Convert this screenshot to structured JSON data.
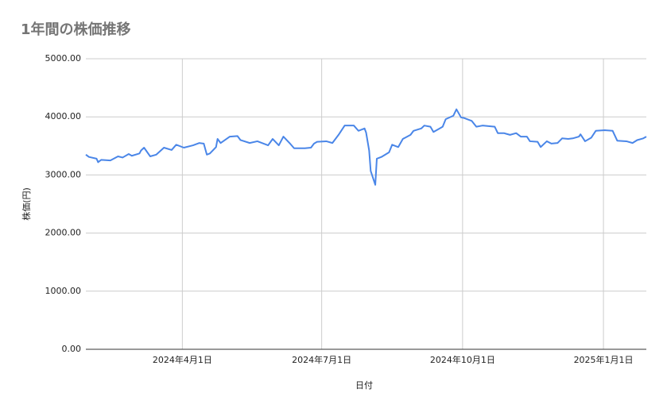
{
  "chart_data": {
    "type": "line",
    "title": "1年間の株価推移",
    "x_label": "日付",
    "y_label": "株価(円)",
    "color": "#4a86e8",
    "grid": true,
    "xlim": [
      "2024-01-29",
      "2025-01-29"
    ],
    "xticks": [
      {
        "value": "2024-04-01",
        "label": "2024年4月1日"
      },
      {
        "value": "2024-07-01",
        "label": "2024年7月1日"
      },
      {
        "value": "2024-10-01",
        "label": "2024年10月1日"
      },
      {
        "value": "2025-01-01",
        "label": "2025年1月1日"
      }
    ],
    "ylim": [
      0,
      5000
    ],
    "yticks": [
      {
        "value": 0,
        "label": "0.00"
      },
      {
        "value": 1000,
        "label": "1000.00"
      },
      {
        "value": 2000,
        "label": "2000.00"
      },
      {
        "value": 3000,
        "label": "3000.00"
      },
      {
        "value": 4000,
        "label": "4000.00"
      },
      {
        "value": 5000,
        "label": "5000.00"
      }
    ],
    "x": [
      "2024-01-29",
      "2024-01-31",
      "2024-02-05",
      "2024-02-06",
      "2024-02-08",
      "2024-02-14",
      "2024-02-19",
      "2024-02-22",
      "2024-02-26",
      "2024-02-28",
      "2024-03-04",
      "2024-03-05",
      "2024-03-07",
      "2024-03-11",
      "2024-03-15",
      "2024-03-20",
      "2024-03-25",
      "2024-03-28",
      "2024-04-02",
      "2024-04-08",
      "2024-04-12",
      "2024-04-15",
      "2024-04-17",
      "2024-04-19",
      "2024-04-23",
      "2024-04-24",
      "2024-04-26",
      "2024-05-02",
      "2024-05-07",
      "2024-05-09",
      "2024-05-15",
      "2024-05-20",
      "2024-05-27",
      "2024-05-30",
      "2024-06-03",
      "2024-06-06",
      "2024-06-10",
      "2024-06-13",
      "2024-06-17",
      "2024-06-20",
      "2024-06-24",
      "2024-06-26",
      "2024-06-28",
      "2024-07-04",
      "2024-07-08",
      "2024-07-12",
      "2024-07-16",
      "2024-07-22",
      "2024-07-25",
      "2024-07-29",
      "2024-07-30",
      "2024-08-01",
      "2024-08-02",
      "2024-08-05",
      "2024-08-06",
      "2024-08-09",
      "2024-08-14",
      "2024-08-16",
      "2024-08-20",
      "2024-08-23",
      "2024-08-28",
      "2024-08-30",
      "2024-09-04",
      "2024-09-06",
      "2024-09-10",
      "2024-09-12",
      "2024-09-16",
      "2024-09-18",
      "2024-09-20",
      "2024-09-25",
      "2024-09-27",
      "2024-09-30",
      "2024-10-02",
      "2024-10-07",
      "2024-10-10",
      "2024-10-14",
      "2024-10-18",
      "2024-10-22",
      "2024-10-24",
      "2024-10-28",
      "2024-11-01",
      "2024-11-05",
      "2024-11-08",
      "2024-11-12",
      "2024-11-14",
      "2024-11-19",
      "2024-11-21",
      "2024-11-25",
      "2024-11-28",
      "2024-12-02",
      "2024-12-05",
      "2024-12-09",
      "2024-12-12",
      "2024-12-16",
      "2024-12-17",
      "2024-12-20",
      "2024-12-24",
      "2024-12-27",
      "2025-01-02",
      "2025-01-07",
      "2025-01-10",
      "2025-01-16",
      "2025-01-20",
      "2025-01-23",
      "2025-01-27",
      "2025-01-29"
    ],
    "values": [
      3350,
      3310,
      3280,
      3220,
      3260,
      3250,
      3320,
      3300,
      3360,
      3330,
      3370,
      3420,
      3470,
      3320,
      3350,
      3470,
      3430,
      3520,
      3470,
      3510,
      3550,
      3540,
      3350,
      3370,
      3480,
      3620,
      3550,
      3660,
      3670,
      3600,
      3550,
      3580,
      3510,
      3620,
      3510,
      3660,
      3550,
      3460,
      3460,
      3460,
      3470,
      3540,
      3570,
      3580,
      3550,
      3690,
      3850,
      3850,
      3760,
      3800,
      3730,
      3420,
      3070,
      2830,
      3280,
      3310,
      3390,
      3520,
      3480,
      3620,
      3690,
      3760,
      3800,
      3850,
      3830,
      3740,
      3800,
      3830,
      3960,
      4020,
      4130,
      3990,
      3980,
      3930,
      3830,
      3850,
      3840,
      3830,
      3720,
      3720,
      3690,
      3720,
      3660,
      3660,
      3580,
      3570,
      3480,
      3580,
      3540,
      3550,
      3630,
      3620,
      3630,
      3660,
      3700,
      3580,
      3640,
      3760,
      3770,
      3760,
      3590,
      3580,
      3550,
      3600,
      3630,
      3660
    ]
  }
}
